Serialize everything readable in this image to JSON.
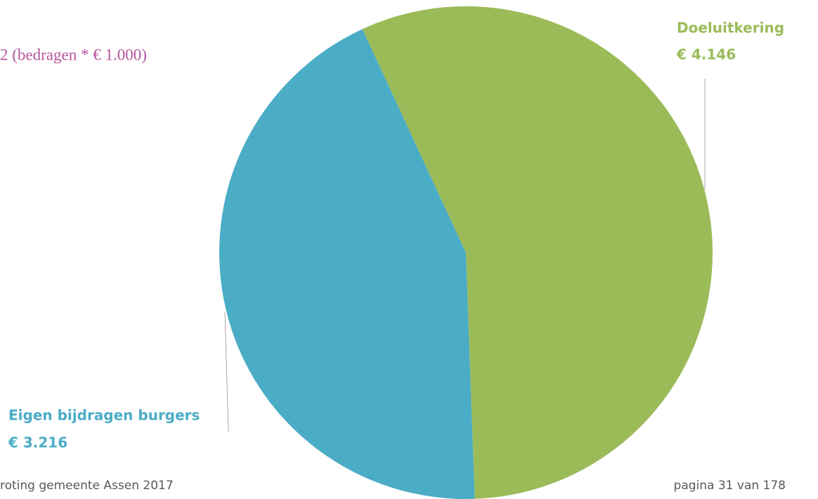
{
  "chart_data": {
    "type": "pie",
    "title": "2 (bedragen * € 1.000)",
    "categories": [
      "Doeluitkering",
      "Eigen bijdragen burgers"
    ],
    "values": [
      4146,
      3216
    ],
    "value_labels": [
      "€ 4.146",
      "€ 3.216"
    ],
    "colors": [
      "#9bbb59",
      "#4bacc6"
    ]
  },
  "footer": {
    "left": "roting gemeente Assen 2017",
    "right": "pagina 31 van 178"
  }
}
